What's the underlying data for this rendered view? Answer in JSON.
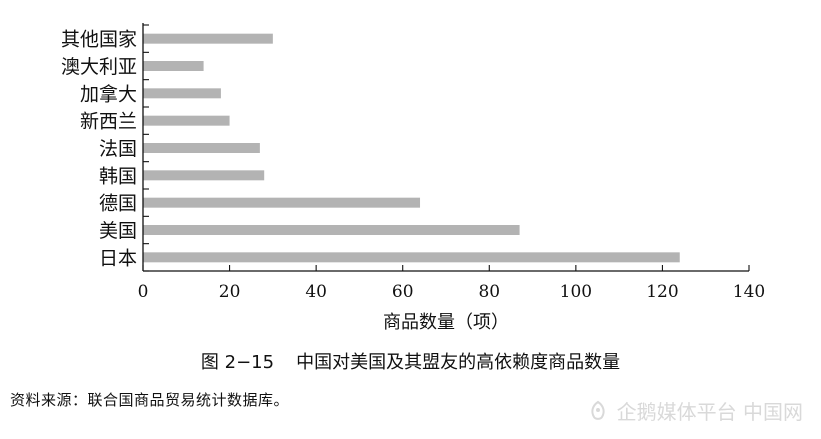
{
  "chart_data": {
    "type": "bar",
    "orientation": "horizontal",
    "categories": [
      "其他国家",
      "澳大利亚",
      "加拿大",
      "新西兰",
      "法国",
      "韩国",
      "德国",
      "美国",
      "日本"
    ],
    "values": [
      30,
      14,
      18,
      20,
      27,
      28,
      64,
      87,
      124
    ],
    "xlabel": "商品数量（项）",
    "ylabel": "",
    "xlim": [
      0,
      140
    ],
    "xticks": [
      "0",
      "20",
      "40",
      "60",
      "80",
      "100",
      "120",
      "140"
    ],
    "bar_color": "#b3b3b3",
    "grid": false
  },
  "caption": {
    "number": "图 2−15",
    "title": "中国对美国及其盟友的高依赖度商品数量"
  },
  "source": "资料来源：联合国商品贸易统计数据库。",
  "watermark": {
    "text": "企鹅媒体平台 中国网",
    "icon": "penguin-media-icon"
  }
}
